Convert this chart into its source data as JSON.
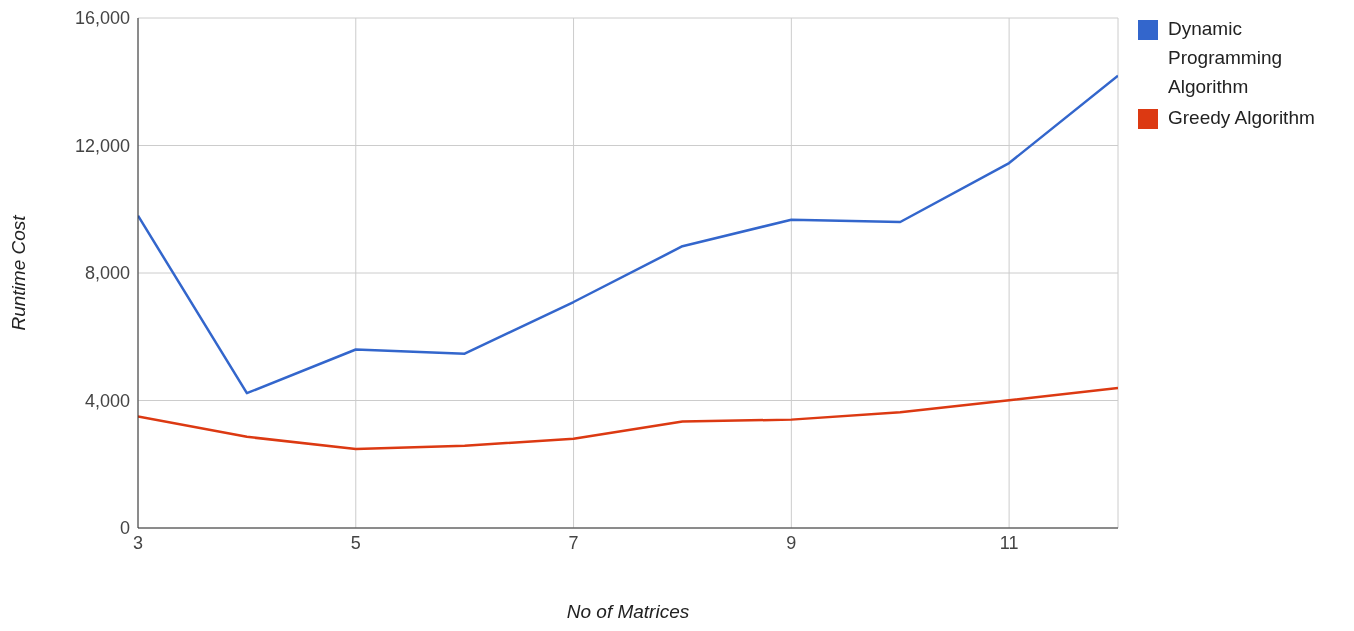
{
  "chart_data": {
    "type": "line",
    "xlabel": "No of Matrices",
    "ylabel": "Runtime Cost",
    "x": [
      3,
      4,
      5,
      6,
      7,
      8,
      9,
      10,
      11,
      12
    ],
    "series": [
      {
        "name": "Dynamic Programming Algorithm",
        "color": "#3366cc",
        "values": [
          9800,
          4230,
          5600,
          5470,
          7090,
          8840,
          9670,
          9600,
          11450,
          14190
        ]
      },
      {
        "name": "Greedy Algorithm",
        "color": "#dc3912",
        "values": [
          3500,
          2860,
          2480,
          2580,
          2800,
          3340,
          3400,
          3630,
          4010,
          4390
        ]
      }
    ],
    "xlim": [
      3,
      12
    ],
    "xticks": [
      3,
      5,
      7,
      9,
      11
    ],
    "ylim": [
      0,
      16000
    ],
    "yticks": [
      {
        "value": 0,
        "label": "0"
      },
      {
        "value": 4000,
        "label": "4,000"
      },
      {
        "value": 8000,
        "label": "8,000"
      },
      {
        "value": 12000,
        "label": "12,000"
      },
      {
        "value": 16000,
        "label": "16,000"
      }
    ],
    "grid": true,
    "legend": "top right",
    "marker": "none",
    "line_style": "solid"
  }
}
